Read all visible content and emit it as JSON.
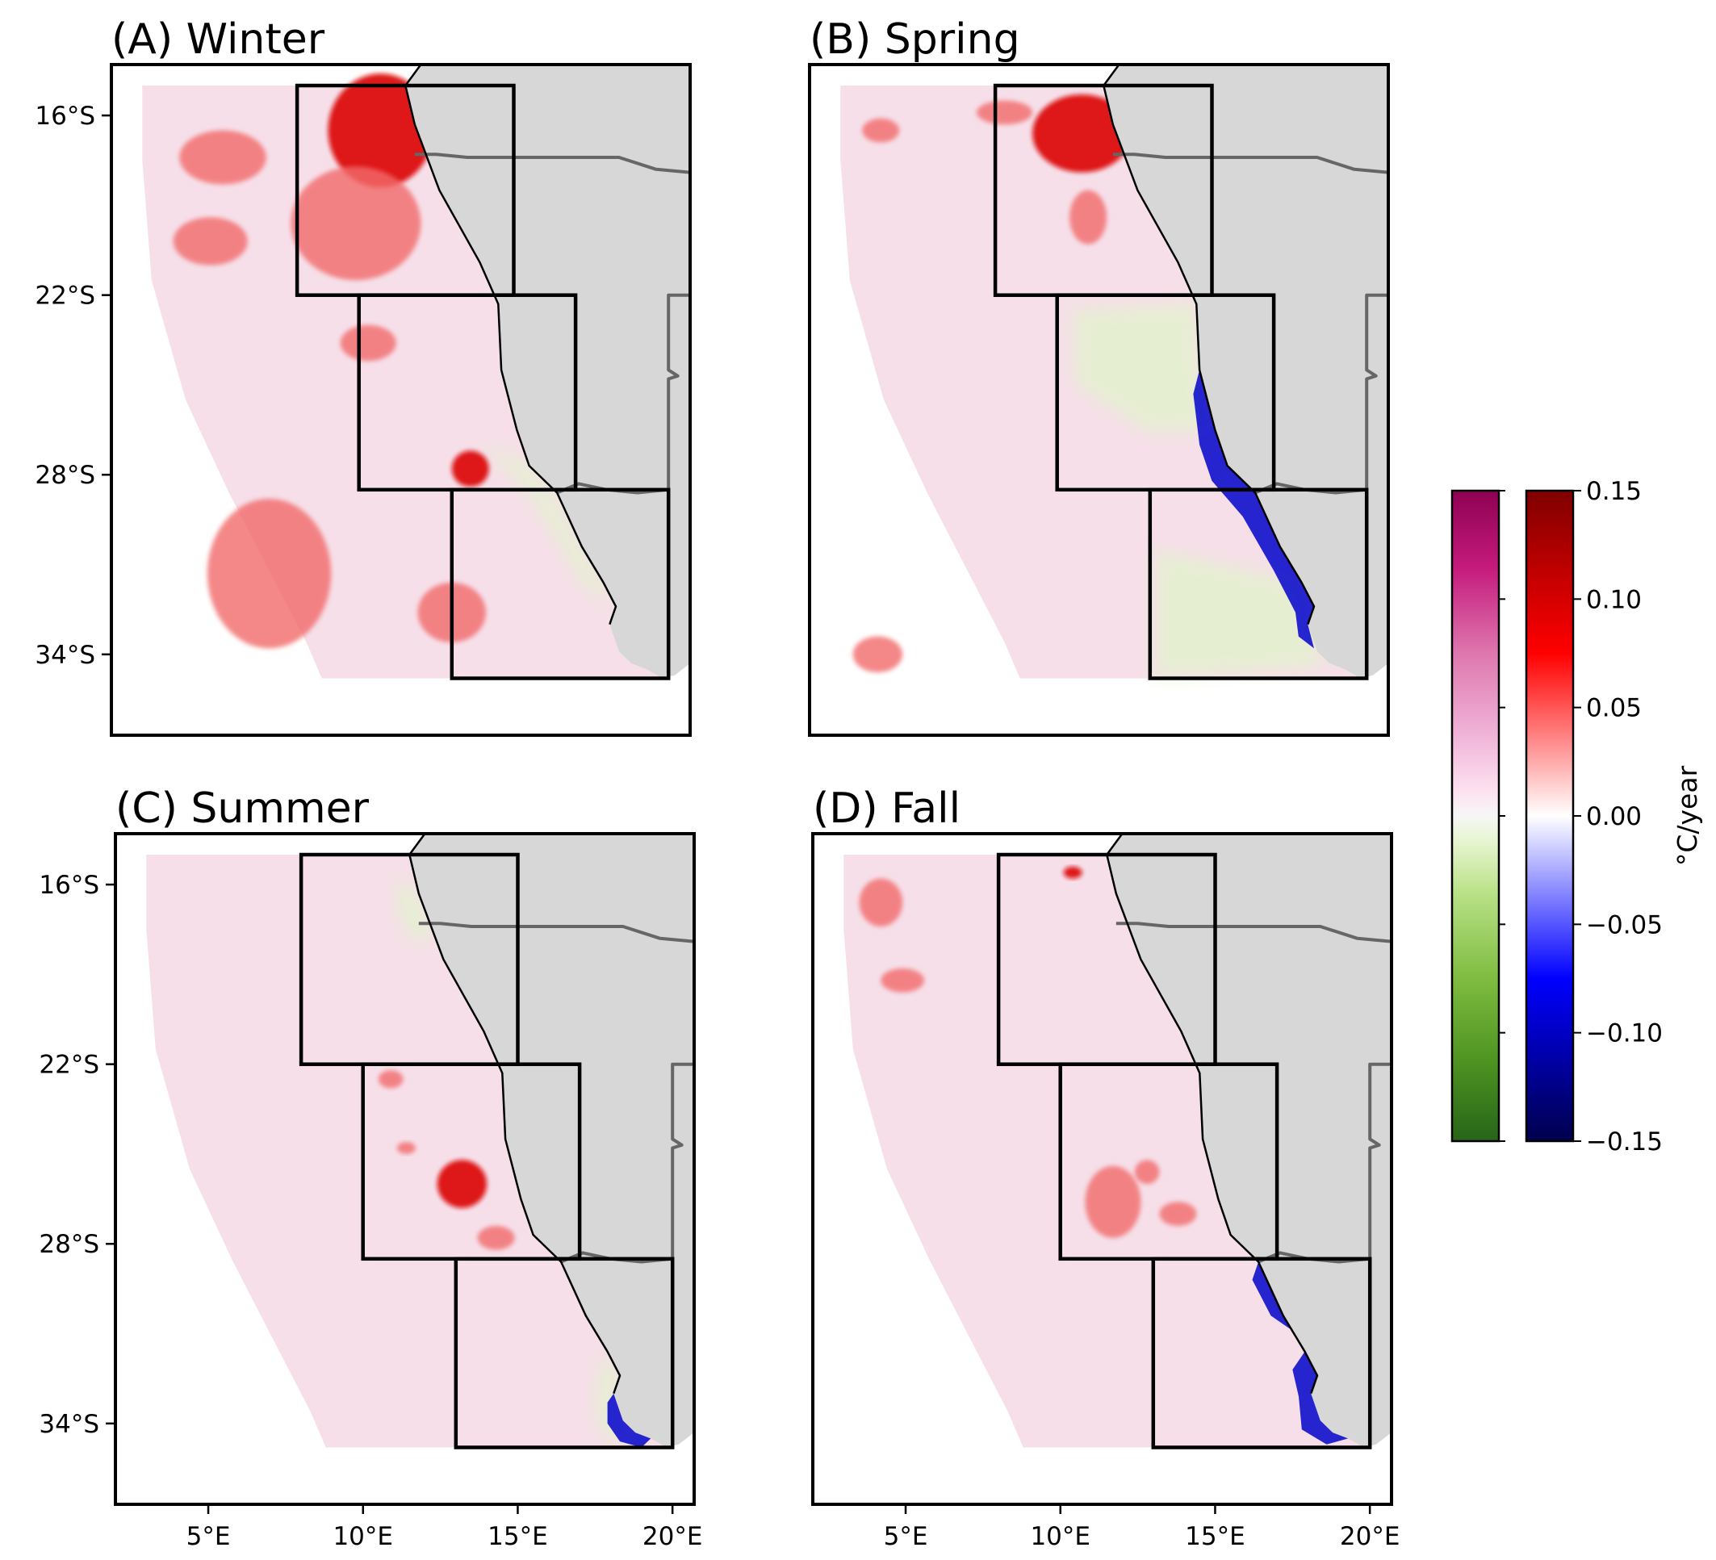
{
  "panels": [
    {
      "id": "A",
      "title": "(A) Winter",
      "show_y_ticks": true,
      "show_x_ticks": false
    },
    {
      "id": "B",
      "title": "(B) Spring",
      "show_y_ticks": false,
      "show_x_ticks": false
    },
    {
      "id": "C",
      "title": "(C) Summer",
      "show_y_ticks": true,
      "show_x_ticks": true
    },
    {
      "id": "D",
      "title": "(D) Fall",
      "show_y_ticks": false,
      "show_x_ticks": true
    }
  ],
  "map_extent": {
    "lon": [
      2.0,
      20.7
    ],
    "lat": [
      -36.7,
      -14.3
    ]
  },
  "lat_ticks": [
    {
      "value": -16,
      "label": "16°S"
    },
    {
      "value": -22,
      "label": "22°S"
    },
    {
      "value": -28,
      "label": "28°S"
    },
    {
      "value": -34,
      "label": "34°S"
    }
  ],
  "lon_ticks": [
    {
      "value": 5,
      "label": "5°E"
    },
    {
      "value": 10,
      "label": "10°E"
    },
    {
      "value": 15,
      "label": "15°E"
    },
    {
      "value": 20,
      "label": "20°E"
    }
  ],
  "regions": [
    {
      "name": "northern",
      "lon": [
        8,
        15
      ],
      "lat": [
        -22,
        -15
      ]
    },
    {
      "name": "central",
      "lon": [
        10,
        17
      ],
      "lat": [
        -28.5,
        -22
      ]
    },
    {
      "name": "southern",
      "lon": [
        13,
        20
      ],
      "lat": [
        -34.8,
        -28.5
      ]
    }
  ],
  "colorbar": {
    "label": "°C/year",
    "range": [
      -0.15,
      0.15
    ],
    "ticks": [
      "0.15",
      "0.10",
      "0.05",
      "0.00",
      "−0.05",
      "−0.10",
      "−0.15"
    ],
    "tick_values": [
      0.15,
      0.1,
      0.05,
      0.0,
      -0.05,
      -0.1,
      -0.15
    ],
    "colormaps": [
      "PiYG",
      "seismic"
    ]
  },
  "colors": {
    "land": "#d7d7d7",
    "border": "#666666",
    "coast": "#000000",
    "ocean_base": "#f6dfe9",
    "warm_strong": "#dd0a0a",
    "warm_moderate": "#f26a6a",
    "cool_strong": "#1010cc",
    "greenish": "#e4f1cf"
  },
  "anomaly_patches": {
    "A": [
      {
        "lon": 10.7,
        "lat": -16.5,
        "rlon": 1.7,
        "rlat": 1.9,
        "tone": "strong"
      },
      {
        "lon": 9.9,
        "lat": -19.6,
        "rlon": 2.1,
        "rlat": 1.9,
        "tone": "moderate"
      },
      {
        "lon": 5.6,
        "lat": -17.4,
        "rlon": 1.4,
        "rlat": 0.9,
        "tone": "moderate"
      },
      {
        "lon": 5.2,
        "lat": -20.2,
        "rlon": 1.2,
        "rlat": 0.8,
        "tone": "moderate"
      },
      {
        "lon": 10.3,
        "lat": -23.6,
        "rlon": 0.9,
        "rlat": 0.6,
        "tone": "moderate"
      },
      {
        "lon": 13.6,
        "lat": -27.8,
        "rlon": 0.6,
        "rlat": 0.6,
        "tone": "strong"
      },
      {
        "lon": 7.1,
        "lat": -31.3,
        "rlon": 2.0,
        "rlat": 2.5,
        "tone": "moderate"
      },
      {
        "lon": 13.0,
        "lat": -32.6,
        "rlon": 1.1,
        "rlat": 1.0,
        "tone": "moderate"
      }
    ],
    "B": [
      {
        "lon": 10.8,
        "lat": -16.6,
        "rlon": 1.6,
        "rlat": 1.3,
        "tone": "strong"
      },
      {
        "lon": 11.0,
        "lat": -19.4,
        "rlon": 0.6,
        "rlat": 0.9,
        "tone": "moderate"
      },
      {
        "lon": 8.3,
        "lat": -15.9,
        "rlon": 0.9,
        "rlat": 0.4,
        "tone": "moderate"
      },
      {
        "lon": 4.3,
        "lat": -16.5,
        "rlon": 0.6,
        "rlat": 0.4,
        "tone": "moderate"
      },
      {
        "lon": 4.2,
        "lat": -34.0,
        "rlon": 0.8,
        "rlat": 0.6,
        "tone": "moderate"
      }
    ],
    "C": [
      {
        "lon": 13.2,
        "lat": -26.0,
        "rlon": 0.8,
        "rlat": 0.8,
        "tone": "strong"
      },
      {
        "lon": 14.3,
        "lat": -27.8,
        "rlon": 0.6,
        "rlat": 0.4,
        "tone": "moderate"
      },
      {
        "lon": 10.9,
        "lat": -22.5,
        "rlon": 0.4,
        "rlat": 0.3,
        "tone": "moderate"
      },
      {
        "lon": 11.4,
        "lat": -24.8,
        "rlon": 0.3,
        "rlat": 0.2,
        "tone": "moderate"
      }
    ],
    "D": [
      {
        "lon": 10.4,
        "lat": -15.6,
        "rlon": 0.3,
        "rlat": 0.2,
        "tone": "strong"
      },
      {
        "lon": 4.2,
        "lat": -16.6,
        "rlon": 0.7,
        "rlat": 0.8,
        "tone": "moderate"
      },
      {
        "lon": 4.9,
        "lat": -19.2,
        "rlon": 0.7,
        "rlat": 0.4,
        "tone": "moderate"
      },
      {
        "lon": 11.7,
        "lat": -26.6,
        "rlon": 0.9,
        "rlat": 1.2,
        "tone": "moderate"
      },
      {
        "lon": 13.8,
        "lat": -27.0,
        "rlon": 0.6,
        "rlat": 0.4,
        "tone": "moderate"
      },
      {
        "lon": 12.8,
        "lat": -25.6,
        "rlon": 0.4,
        "rlat": 0.4,
        "tone": "moderate"
      }
    ]
  }
}
